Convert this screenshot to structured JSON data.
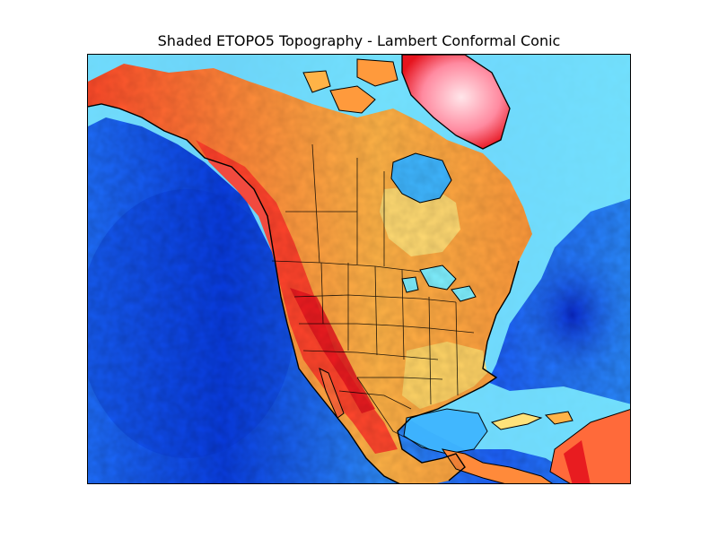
{
  "figure": {
    "title": "Shaded ETOPO5 Topography - Lambert Conformal Conic"
  },
  "map": {
    "projection": "Lambert Conformal Conic",
    "dataset": "ETOPO5",
    "shading": "shaded relief",
    "colormap_colors": {
      "deep_ocean": "#0a2bd6",
      "ocean": "#1f6fff",
      "shallow_ocean": "#3fb6ff",
      "shelf": "#7ff0ff",
      "coast": "#b8ffb0",
      "lowland": "#ffe27a",
      "upland": "#ff9a3c",
      "mountain": "#ff4a2a",
      "high_mountain": "#e6141e",
      "ice_cap": "#ffe6ea"
    },
    "features": {
      "coastlines": true,
      "country_borders": true,
      "state_borders": true
    }
  }
}
